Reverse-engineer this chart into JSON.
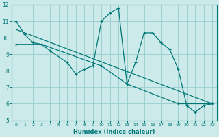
{
  "xlabel": "Humidex (Indice chaleur)",
  "bg_color": "#cceaea",
  "grid_color": "#99cccc",
  "line_color": "#007777",
  "xlim": [
    -0.5,
    23.5
  ],
  "ylim": [
    5,
    12
  ],
  "xticks": [
    0,
    1,
    2,
    3,
    4,
    5,
    6,
    7,
    8,
    9,
    10,
    11,
    12,
    13,
    14,
    15,
    16,
    17,
    18,
    19,
    20,
    21,
    22,
    23
  ],
  "yticks": [
    5,
    6,
    7,
    8,
    9,
    10,
    11,
    12
  ],
  "curve1_x": [
    0,
    1,
    2,
    3,
    4,
    6,
    7,
    8,
    9,
    10,
    11,
    12,
    13,
    14,
    15,
    16,
    17,
    18,
    19,
    20,
    21,
    22,
    23
  ],
  "curve1_y": [
    11.0,
    10.2,
    9.7,
    9.6,
    9.2,
    8.5,
    7.8,
    8.1,
    8.3,
    11.0,
    11.5,
    11.8,
    7.2,
    8.5,
    10.3,
    10.3,
    9.7,
    9.3,
    8.1,
    5.9,
    5.5,
    5.9,
    6.0
  ],
  "curve2_x": [
    0,
    23
  ],
  "curve2_y": [
    10.5,
    6.0
  ],
  "curve3_x": [
    0,
    3,
    10,
    13,
    19,
    23
  ],
  "curve3_y": [
    9.6,
    9.6,
    8.3,
    7.2,
    6.0,
    6.0
  ]
}
